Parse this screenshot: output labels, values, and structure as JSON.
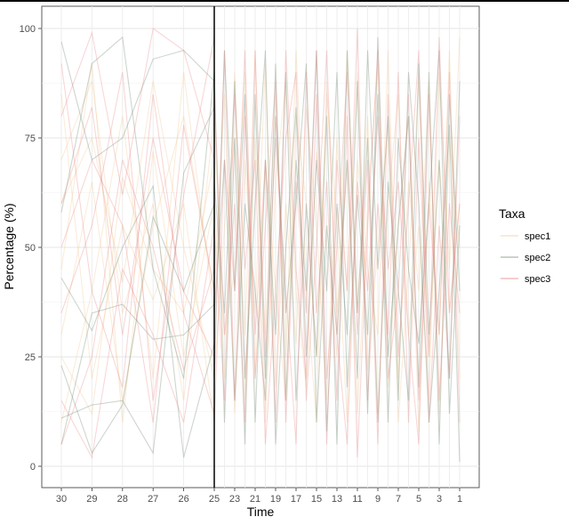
{
  "chart_data": {
    "type": "line",
    "xlabel": "Time",
    "ylabel": "Percentage (%)",
    "ylim": [
      0,
      100
    ],
    "y_ticks": [
      0,
      25,
      50,
      75,
      100
    ],
    "x_categories_left": [
      "30",
      "29",
      "28",
      "27",
      "26",
      "25"
    ],
    "x_categories_right": [
      "25",
      "24",
      "23",
      "22",
      "21",
      "20",
      "19",
      "18",
      "17",
      "16",
      "15",
      "14",
      "13",
      "12",
      "11",
      "10",
      "9",
      "8",
      "7",
      "6",
      "5",
      "4",
      "3",
      "2",
      "1"
    ],
    "x_tick_labels_left": [
      "30",
      "29",
      "28",
      "27",
      "26",
      "25"
    ],
    "x_tick_labels_right": [
      "23",
      "21",
      "19",
      "17",
      "15",
      "13",
      "11",
      "9",
      "7",
      "5",
      "3",
      "1"
    ],
    "divider_at": "25",
    "grid": true,
    "legend": {
      "title": "Taxa",
      "placement": "right",
      "entries": [
        {
          "name": "spec1",
          "color": "#f2c894"
        },
        {
          "name": "spec2",
          "color": "#6f8a72"
        },
        {
          "name": "spec3",
          "color": "#e87a7a"
        }
      ]
    },
    "series": [
      {
        "name": "spec1",
        "color": "#f2c894",
        "opacity": 0.35,
        "left": [
          [
            70,
            88,
            35,
            60,
            15,
            80
          ],
          [
            30,
            65,
            15,
            55,
            80,
            40
          ],
          [
            85,
            20,
            55,
            38,
            60,
            10
          ],
          [
            45,
            92,
            10,
            72,
            25,
            60
          ],
          [
            10,
            40,
            80,
            20,
            90,
            35
          ],
          [
            60,
            75,
            42,
            88,
            50,
            20
          ],
          [
            25,
            12,
            66,
            45,
            35,
            70
          ]
        ],
        "right": [
          [
            80,
            20,
            90,
            15,
            75,
            30,
            85,
            25,
            95,
            40,
            10,
            88,
            35,
            70,
            12,
            60,
            92,
            18,
            55,
            80,
            8,
            65,
            30,
            95,
            20
          ],
          [
            40,
            85,
            12,
            70,
            35,
            92,
            18,
            60,
            28,
            82,
            55,
            15,
            75,
            40,
            90,
            22,
            50,
            78,
            10,
            45,
            88,
            25,
            70,
            35,
            60
          ],
          [
            20,
            55,
            75,
            30,
            95,
            10,
            65,
            88,
            40,
            18,
            72,
            50,
            25,
            95,
            35,
            80,
            12,
            60,
            85,
            30,
            55,
            15,
            90,
            45,
            98
          ],
          [
            60,
            30,
            45,
            90,
            20,
            70,
            40,
            15,
            80,
            60,
            25,
            85,
            55,
            10,
            70,
            45,
            30,
            95,
            20,
            65,
            40,
            88,
            12,
            75,
            50
          ]
        ]
      },
      {
        "name": "spec2",
        "color": "#6f8a72",
        "opacity": 0.35,
        "left": [
          [
            97,
            70,
            75,
            93,
            95,
            88
          ],
          [
            11,
            14,
            15,
            3,
            67,
            82
          ],
          [
            5,
            35,
            37,
            29,
            30,
            37
          ],
          [
            43,
            31,
            50,
            64,
            2,
            28
          ],
          [
            58,
            92,
            98,
            45,
            20,
            90
          ],
          [
            23,
            3,
            14,
            57,
            40,
            60
          ]
        ],
        "right": [
          [
            90,
            10,
            75,
            5,
            85,
            20,
            92,
            15,
            70,
            40,
            95,
            8,
            60,
            30,
            88,
            12,
            98,
            25,
            55,
            80,
            18,
            90,
            5,
            85,
            40
          ],
          [
            20,
            95,
            40,
            85,
            10,
            70,
            30,
            90,
            15,
            60,
            25,
            80,
            5,
            95,
            35,
            75,
            10,
            65,
            40,
            15,
            92,
            30,
            70,
            20,
            88
          ],
          [
            65,
            35,
            88,
            20,
            60,
            95,
            5,
            50,
            82,
            25,
            70,
            40,
            90,
            18,
            62,
            30,
            85,
            10,
            75,
            45,
            28,
            60,
            95,
            12,
            55
          ],
          [
            35,
            70,
            15,
            60,
            40,
            15,
            80,
            35,
            60,
            92,
            10,
            55,
            30,
            70,
            20,
            95,
            45,
            80,
            15,
            90,
            60,
            10,
            40,
            78,
            1
          ]
        ]
      },
      {
        "name": "spec3",
        "color": "#e87a7a",
        "opacity": 0.3,
        "left": [
          [
            80,
            99,
            62,
            100,
            95,
            70
          ],
          [
            15,
            2,
            45,
            30,
            10,
            55
          ],
          [
            60,
            82,
            30,
            75,
            40,
            25
          ],
          [
            35,
            55,
            90,
            15,
            62,
            98
          ],
          [
            5,
            25,
            70,
            50,
            22,
            45
          ],
          [
            92,
            40,
            18,
            85,
            35,
            12
          ],
          [
            50,
            70,
            55,
            10,
            78,
            40
          ]
        ],
        "right": [
          [
            25,
            95,
            15,
            80,
            30,
            70,
            10,
            95,
            45,
            20,
            85,
            5,
            70,
            40,
            100,
            15,
            60,
            30,
            90,
            10,
            75,
            25,
            98,
            35,
            60
          ],
          [
            85,
            30,
            60,
            10,
            95,
            25,
            75,
            40,
            5,
            90,
            35,
            65,
            15,
            80,
            2,
            55,
            95,
            20,
            40,
            85,
            15,
            60,
            30,
            90,
            10
          ],
          [
            10,
            70,
            40,
            95,
            20,
            55,
            88,
            10,
            65,
            35,
            95,
            20,
            50,
            90,
            30,
            70,
            5,
            85,
            25,
            60,
            95,
            10,
            55,
            20,
            80
          ],
          [
            55,
            15,
            85,
            45,
            70,
            5,
            40,
            75,
            90,
            15,
            50,
            95,
            30,
            5,
            65,
            40,
            80,
            45,
            65,
            30,
            5,
            85,
            15,
            60,
            35
          ]
        ]
      }
    ]
  }
}
